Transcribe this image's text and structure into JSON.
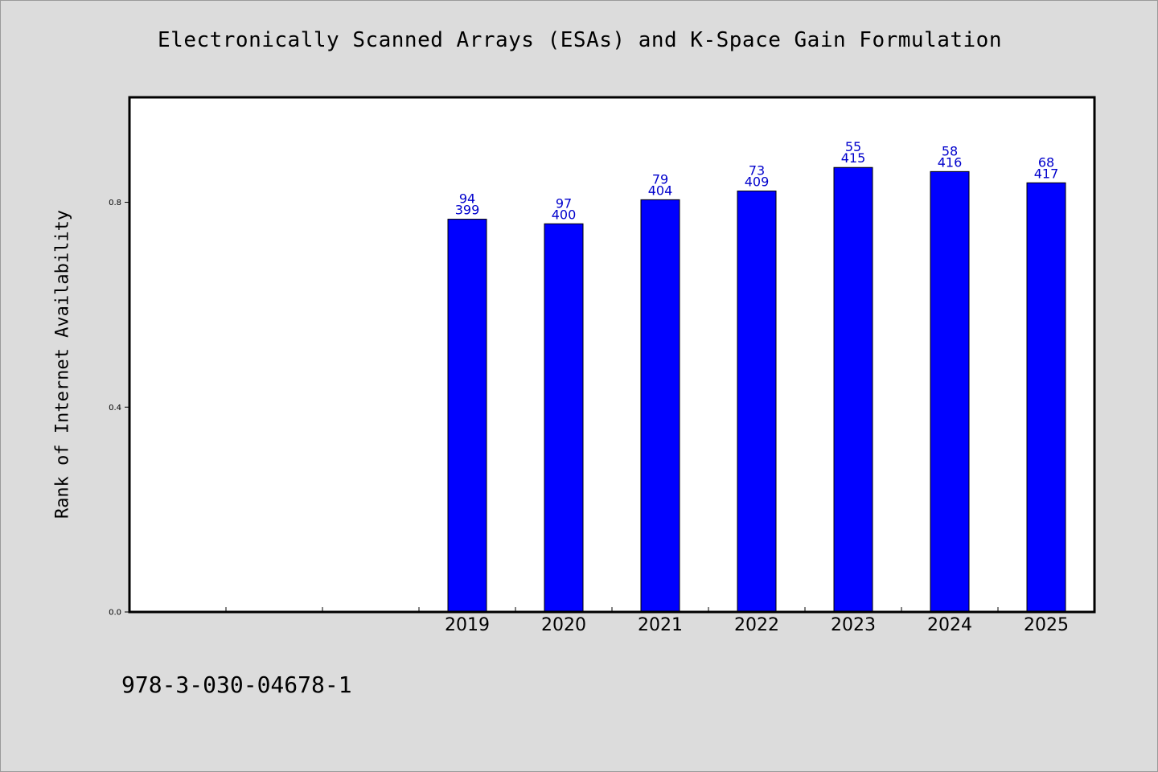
{
  "chart_data": {
    "type": "bar",
    "title": "Electronically Scanned Arrays (ESAs) and K-Space Gain Formulation",
    "ylabel": "Rank of Internet Availability",
    "xlabel": "",
    "categories": [
      "",
      "",
      "",
      "2019",
      "2020",
      "2021",
      "2022",
      "2023",
      "2024",
      "2025"
    ],
    "values": [
      null,
      null,
      null,
      0.767,
      0.758,
      0.805,
      0.822,
      0.868,
      0.86,
      0.838
    ],
    "labels_top": [
      "",
      "",
      "",
      "94",
      "97",
      "79",
      "73",
      "55",
      "58",
      "68"
    ],
    "labels_bottom": [
      "",
      "",
      "",
      "399",
      "400",
      "404",
      "409",
      "415",
      "416",
      "417"
    ],
    "ylim": [
      0,
      1.005
    ],
    "yticks": [
      0.0,
      0.4,
      0.8
    ],
    "ytick_labels": [
      "0.0",
      "0.4",
      "0.8"
    ],
    "bar_color": "#0000ff",
    "label_color": "#0000cc",
    "grid": false,
    "legend": "none"
  },
  "footer": {
    "isbn": "978-3-030-04678-1"
  }
}
